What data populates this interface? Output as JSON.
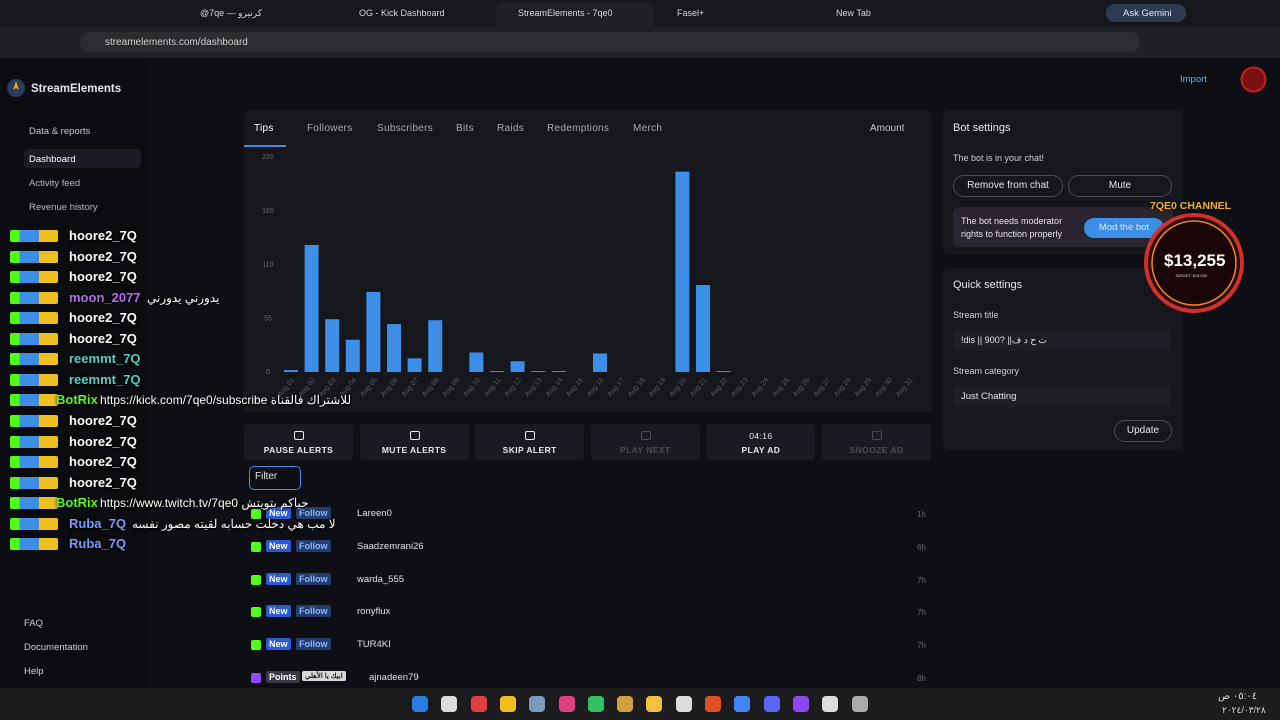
{
  "browser": {
    "tabs": [
      "@7qe — كرتيرو",
      "OG - Kick Dashboard",
      "StreamElements - 7qe0",
      "Fasel+",
      "New Tab"
    ],
    "active_tab": 2,
    "gemini": "Ask Gemini",
    "url": "streamelements.com/dashboard"
  },
  "sidebar": {
    "brand": "StreamElements",
    "section": "Data & reports",
    "items": [
      "Dashboard",
      "Activity feed",
      "Revenue history"
    ],
    "footer": [
      "FAQ",
      "Documentation",
      "Help"
    ]
  },
  "header": {
    "import": "Import"
  },
  "chart_tabs": [
    "Tips",
    "Followers",
    "Subscribers",
    "Bits",
    "Raids",
    "Redemptions",
    "Merch"
  ],
  "chart_sort": "Amount",
  "chart_data": {
    "type": "bar",
    "categories": [
      "Aug 01",
      "Aug 02",
      "Aug 03",
      "Aug 04",
      "Aug 05",
      "Aug 06",
      "Aug 07",
      "Aug 08",
      "Aug 09",
      "Aug 10",
      "Aug 11",
      "Aug 12",
      "Aug 13",
      "Aug 14",
      "Aug 15",
      "Aug 16",
      "Aug 17",
      "Aug 18",
      "Aug 19",
      "Aug 20",
      "Aug 21",
      "Aug 22",
      "Aug 23",
      "Aug 24",
      "Aug 25",
      "Aug 26",
      "Aug 27",
      "Aug 28",
      "Aug 29",
      "Aug 30",
      "Aug 31"
    ],
    "values": [
      2,
      130,
      54,
      33,
      82,
      49,
      14,
      53,
      0,
      20,
      1,
      11,
      1,
      1,
      0,
      19,
      0,
      0,
      0,
      205,
      89,
      1,
      0,
      0,
      0,
      0,
      0,
      0,
      0,
      0,
      0
    ],
    "color": "#3d8ee6",
    "ylim": [
      0,
      220
    ],
    "yticks": [
      0,
      55,
      110,
      165,
      220
    ]
  },
  "controls": [
    "PAUSE ALERTS",
    "MUTE ALERTS",
    "SKIP ALERT",
    "PLAY NEXT",
    "PLAY AD",
    "SNOOZE AD"
  ],
  "ad_timer": "04:16",
  "filter": "Filter",
  "feed": [
    {
      "badge": "New",
      "type": "Follow",
      "user": "Lareen0",
      "time": "1h"
    },
    {
      "badge": "New",
      "type": "Follow",
      "user": "Saadzemrani26",
      "time": "6h"
    },
    {
      "badge": "New",
      "type": "Follow",
      "user": "warda_555",
      "time": "7h"
    },
    {
      "badge": "New",
      "type": "Follow",
      "user": "ronyflux",
      "time": "7h"
    },
    {
      "badge": "New",
      "type": "Follow",
      "user": "TUR4KI",
      "time": "7h"
    },
    {
      "badge": "Points",
      "type": "ابيك يا الأهلي",
      "user": "ajnadeen79",
      "time": "8h"
    }
  ],
  "bot": {
    "title": "Bot settings",
    "status": "The bot is in your chat!",
    "remove": "Remove from chat",
    "mute": "Mute",
    "notice": "The bot needs moderator rights to function properly",
    "mod": "Mod the bot"
  },
  "quick": {
    "title": "Quick settings",
    "stream_title_label": "Stream title",
    "stream_title": "!dis || 900? ||ت ح د ف",
    "category_label": "Stream category",
    "category": "Just Chatting",
    "update": "Update"
  },
  "overlay": {
    "channel": "7QE0 CHANNEL",
    "amount": "$13,255",
    "target": "TARGET: $15,000"
  },
  "chat": [
    {
      "user": "hoore2_7Q",
      "color": "#ffffff",
      "text": null
    },
    {
      "user": "hoore2_7Q",
      "color": "#ffffff",
      "text": null
    },
    {
      "user": "hoore2_7Q",
      "color": "#ffffff",
      "text": null
    },
    {
      "user": "moon_2077",
      "color": "#b46cf0",
      "text": "يدورني يدورني"
    },
    {
      "user": "hoore2_7Q",
      "color": "#ffffff",
      "text": null
    },
    {
      "user": "hoore2_7Q",
      "color": "#ffffff",
      "text": null
    },
    {
      "user": "reemmt_7Q",
      "color": "#4fd1c5",
      "text": null
    },
    {
      "user": "reemmt_7Q",
      "color": "#4fd1c5",
      "text": null
    },
    {
      "user": "BotRix",
      "color": "#53fc18",
      "text": "https://kick.com/7qe0/subscribe للاشتراك فالقناة"
    },
    {
      "user": "hoore2_7Q",
      "color": "#ffffff",
      "text": null
    },
    {
      "user": "hoore2_7Q",
      "color": "#ffffff",
      "text": null
    },
    {
      "user": "hoore2_7Q",
      "color": "#ffffff",
      "text": null
    },
    {
      "user": "hoore2_7Q",
      "color": "#ffffff",
      "text": null
    },
    {
      "user": "BotRix",
      "color": "#53fc18",
      "text": "https://www.twitch.tv/7qe0 حياكم بتويتش"
    },
    {
      "user": "Ruba_7Q",
      "color": "#7b9cff",
      "text": "لا مب هي دخلت حسابه لقيته مصور نفسه"
    },
    {
      "user": "Ruba_7Q",
      "color": "#7b9cff",
      "text": null
    }
  ],
  "taskbar": {
    "time": "٠٥:٠٤ ص",
    "date": "٢٠٢٤/٠٣/٢٨"
  }
}
